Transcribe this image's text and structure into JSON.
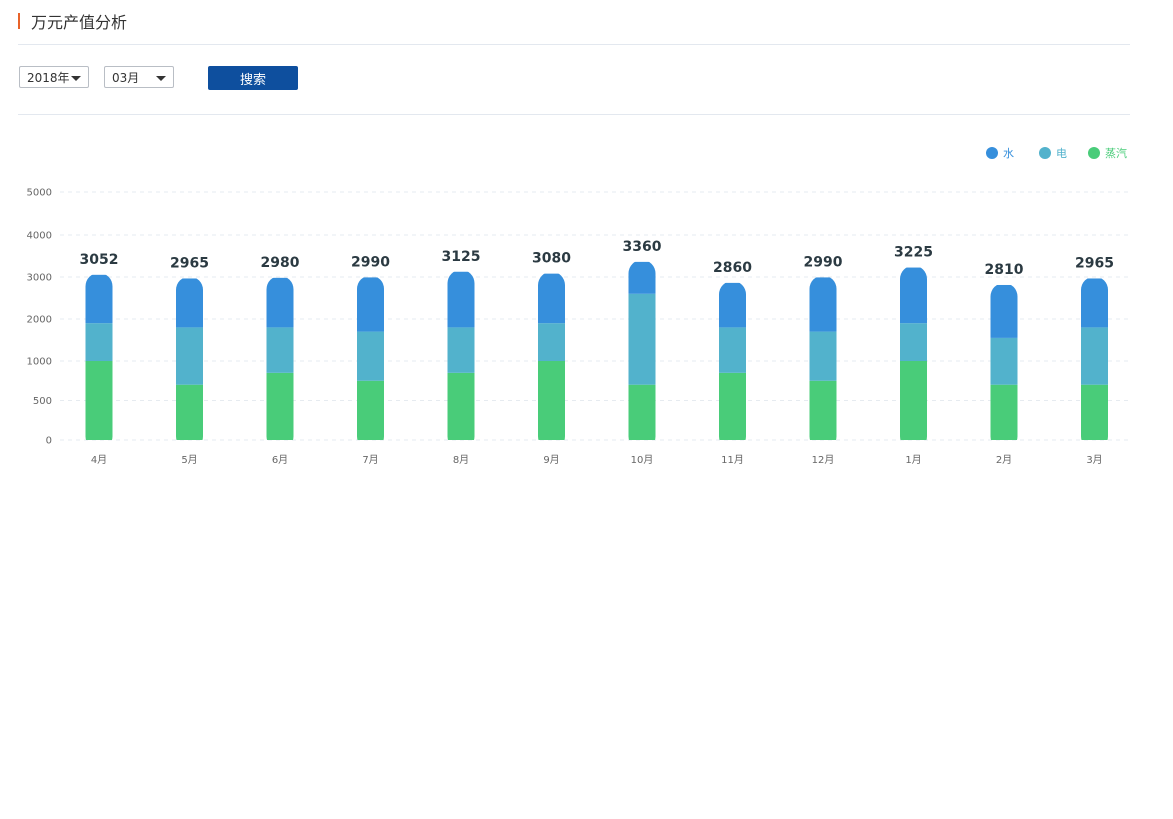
{
  "header": {
    "title": "万元产值分析"
  },
  "filters": {
    "year": {
      "value": "2018年",
      "icon": "caret-down-icon"
    },
    "month": {
      "value": "03月",
      "icon": "caret-down-icon"
    },
    "search_label": "搜索"
  },
  "colors": {
    "title_accent": "#e8632a",
    "button": "#0e4f9e"
  },
  "chart_data": {
    "type": "bar",
    "stacked": true,
    "categories": [
      "4月",
      "5月",
      "6月",
      "7月",
      "8月",
      "9月",
      "10月",
      "11月",
      "12月",
      "1月",
      "2月",
      "3月"
    ],
    "series": [
      {
        "name": "蒸汽",
        "color": "#49cc79",
        "values": [
          1000,
          700,
          850,
          750,
          850,
          1000,
          700,
          850,
          750,
          1000,
          700,
          700
        ]
      },
      {
        "name": "电",
        "color": "#52b2cc",
        "values": [
          900,
          1100,
          950,
          950,
          950,
          900,
          1900,
          950,
          950,
          900,
          850,
          1100
        ]
      },
      {
        "name": "水",
        "color": "#368fdc",
        "values": [
          1152,
          1165,
          1180,
          1290,
          1325,
          1180,
          760,
          1060,
          1290,
          1325,
          1260,
          1165
        ]
      }
    ],
    "totals": [
      3052,
      2965,
      2980,
      2990,
      3125,
      3080,
      3360,
      2860,
      2990,
      3225,
      2810,
      2965
    ],
    "yticks": [
      0,
      500,
      1000,
      2000,
      3000,
      4000,
      5000
    ],
    "ylim": [
      0,
      5000
    ],
    "grid": true,
    "legend_position": "top-right"
  }
}
